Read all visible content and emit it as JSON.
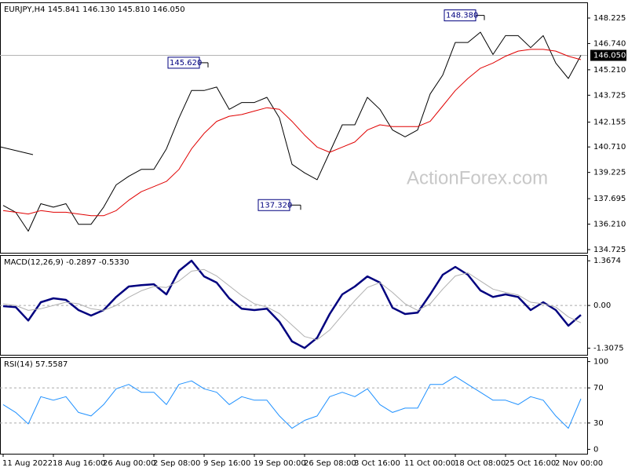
{
  "chart_data": [
    {
      "type": "line",
      "title": "EURJPY,H4 145.841 146.130 145.810 146.050",
      "watermark": "ActionForex.com",
      "ylim": [
        134.54,
        149.14
      ],
      "yticks": [
        148.225,
        {
          "value": 146.74,
          "label": "146.740"
        },
        {
          "value": 145.21,
          "label": "145.210"
        },
        143.725,
        142.155,
        {
          "value": 140.71,
          "label": "140.710"
        },
        139.225,
        137.695,
        {
          "value": 136.21,
          "label": "136.210"
        },
        134.725
      ],
      "last": {
        "value": 146.05,
        "label": "146.050"
      },
      "annotations": [
        {
          "value": 145.62,
          "label": "145.620"
        },
        {
          "value": 148.38,
          "label": "148.380"
        },
        {
          "value": 137.32,
          "label": "137.320"
        }
      ],
      "series": [
        {
          "name": "EURJPY",
          "color": "#000000",
          "values": [
            137.3,
            136.9,
            135.8,
            137.4,
            137.2,
            137.4,
            136.2,
            136.2,
            137.2,
            138.5,
            139.0,
            139.4,
            139.4,
            140.6,
            142.4,
            144.0,
            144.0,
            144.2,
            142.9,
            143.3,
            143.3,
            143.6,
            142.4,
            139.7,
            139.2,
            138.8,
            140.4,
            142.0,
            142.0,
            143.6,
            142.9,
            141.7,
            141.3,
            141.7,
            143.8,
            144.9,
            146.8,
            146.8,
            147.4,
            146.1,
            147.2,
            147.2,
            146.5,
            147.2,
            145.6,
            144.7,
            146.05
          ]
        },
        {
          "name": "MA",
          "color": "#e00000",
          "values": [
            137.0,
            136.9,
            136.8,
            137.0,
            136.9,
            136.9,
            136.8,
            136.7,
            136.7,
            137.0,
            137.6,
            138.1,
            138.4,
            138.7,
            139.4,
            140.6,
            141.5,
            142.2,
            142.5,
            142.6,
            142.8,
            143.0,
            142.9,
            142.2,
            141.4,
            140.7,
            140.4,
            140.7,
            141.0,
            141.7,
            142.0,
            141.9,
            141.9,
            141.9,
            142.2,
            143.1,
            144.0,
            144.7,
            145.3,
            145.6,
            146.0,
            146.3,
            146.4,
            146.4,
            146.3,
            146.0,
            145.8
          ]
        }
      ]
    },
    {
      "type": "line",
      "title": "MACD(12,26,9) -0.2897 -0.5330",
      "ylim": [
        -1.51,
        1.54
      ],
      "yticks": [
        1.3674,
        {
          "value": 0,
          "label": "0.00"
        },
        -1.3075
      ],
      "levels": [
        0
      ],
      "series": [
        {
          "name": "MACD",
          "color": "#00007f",
          "values": [
            -0.02,
            -0.05,
            -0.46,
            0.1,
            0.22,
            0.17,
            -0.14,
            -0.31,
            -0.14,
            0.26,
            0.58,
            0.62,
            0.65,
            0.34,
            1.06,
            1.37,
            0.89,
            0.7,
            0.22,
            -0.1,
            -0.14,
            -0.1,
            -0.5,
            -1.1,
            -1.3,
            -0.99,
            -0.26,
            0.34,
            0.58,
            0.89,
            0.7,
            -0.07,
            -0.26,
            -0.22,
            0.34,
            0.94,
            1.18,
            0.94,
            0.46,
            0.26,
            0.34,
            0.26,
            -0.14,
            0.1,
            -0.14,
            -0.62,
            -0.29
          ]
        },
        {
          "name": "Signal",
          "color": "#b0b0b0",
          "values": [
            0.05,
            0.0,
            -0.15,
            -0.1,
            0.0,
            0.1,
            0.05,
            -0.1,
            -0.15,
            0.0,
            0.25,
            0.45,
            0.58,
            0.55,
            0.75,
            1.05,
            1.1,
            0.9,
            0.6,
            0.3,
            0.05,
            -0.05,
            -0.25,
            -0.6,
            -0.95,
            -1.05,
            -0.75,
            -0.3,
            0.15,
            0.55,
            0.7,
            0.4,
            0.05,
            -0.15,
            0.05,
            0.5,
            0.9,
            1.0,
            0.75,
            0.5,
            0.4,
            0.32,
            0.1,
            0.05,
            -0.05,
            -0.35,
            -0.53
          ]
        }
      ]
    },
    {
      "type": "line",
      "title": "RSI(14) 57.5587",
      "ylim": [
        -5,
        105
      ],
      "yticks": [
        100,
        70,
        30,
        0
      ],
      "levels": [
        70,
        30
      ],
      "xlim": [
        -0.25,
        46.5
      ],
      "xticks": [
        {
          "value": 0,
          "label": "11 Aug 2022"
        },
        {
          "value": 4,
          "label": "18 Aug 16:00"
        },
        {
          "value": 8,
          "label": "26 Aug 00:00"
        },
        {
          "value": 12,
          "label": "2 Sep 08:00"
        },
        {
          "value": 16,
          "label": "9 Sep 16:00"
        },
        {
          "value": 20,
          "label": "19 Sep 00:00"
        },
        {
          "value": 24,
          "label": "26 Sep 08:00"
        },
        {
          "value": 28,
          "label": "3 Oct 16:00"
        },
        {
          "value": 32,
          "label": "11 Oct 00:00"
        },
        {
          "value": 36,
          "label": "18 Oct 08:00"
        },
        {
          "value": 40,
          "label": "25 Oct 16:00"
        },
        {
          "value": 44,
          "label": "2 Nov 00:00"
        }
      ],
      "series": [
        {
          "name": "RSI",
          "color": "#1e90ff",
          "values": [
            51,
            42,
            29,
            60,
            56,
            60,
            42,
            38,
            51,
            69,
            74,
            65,
            65,
            51,
            74,
            78,
            69,
            65,
            51,
            60,
            56,
            56,
            38,
            24,
            33,
            38,
            60,
            65,
            60,
            69,
            51,
            42,
            47,
            47,
            74,
            74,
            83,
            74,
            65,
            56,
            56,
            51,
            60,
            56,
            38,
            24,
            57.5587
          ]
        }
      ]
    }
  ]
}
